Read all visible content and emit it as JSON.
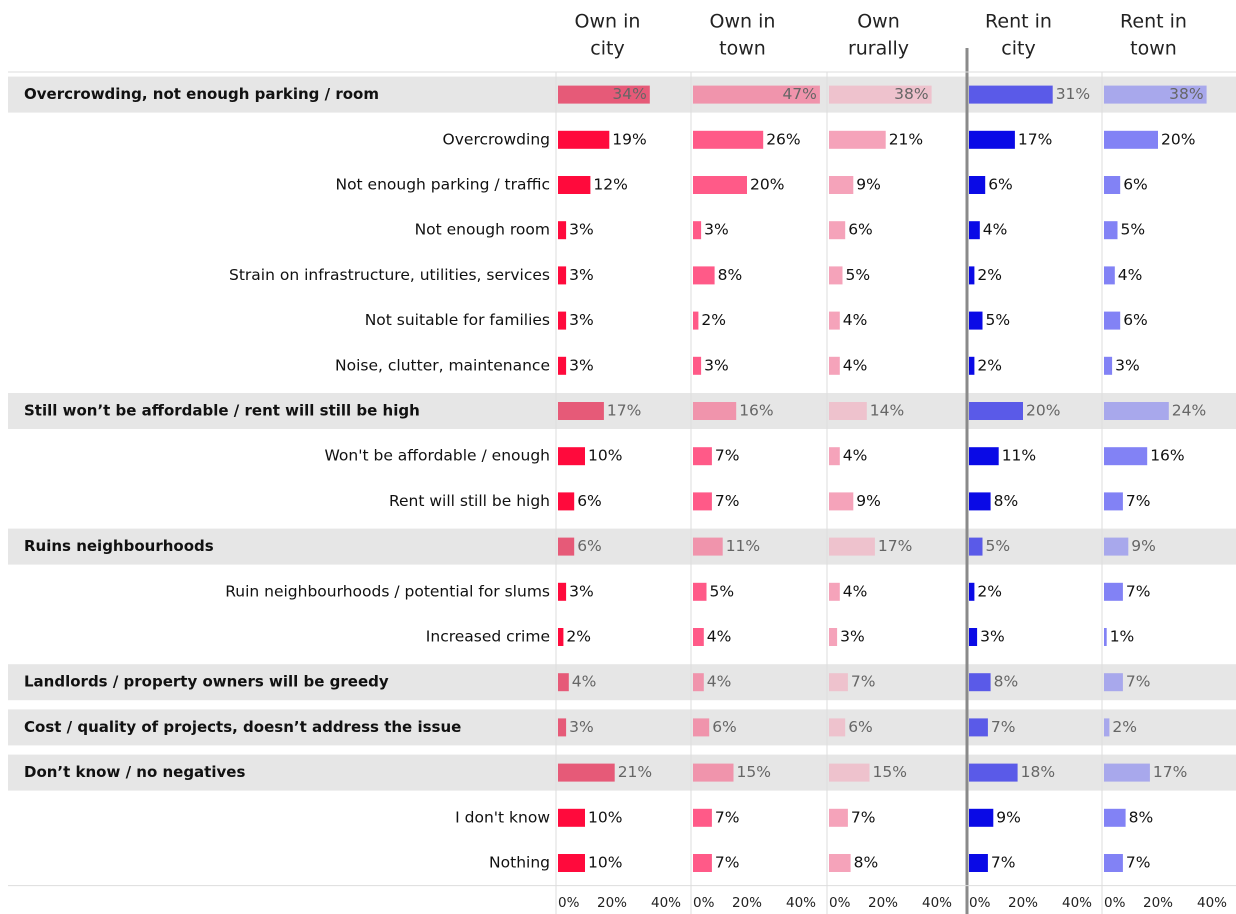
{
  "chart_data": {
    "type": "bar",
    "categories": [
      "Overcrowding, not enough parking / room",
      "Overcrowding",
      "Not enough parking / traffic",
      "Not enough room",
      "Strain on infrastructure, utilities, services",
      "Not suitable for families",
      "Noise, clutter, maintenance",
      "Still won’t be affordable / rent will still be high",
      "Won't be affordable / enough",
      "Rent will still be high",
      "Ruins neighbourhoods",
      "Ruin neighbourhoods / potential for slums",
      "Increased crime",
      "Landlords / property owners will be greedy",
      "Cost / quality of projects, doesn’t address the issue",
      "Don’t know / no negatives",
      "I don't know",
      "Nothing"
    ],
    "header_rows": [
      0,
      7,
      10,
      13,
      14,
      15
    ],
    "series": [
      {
        "name": [
          "Own in",
          "city"
        ],
        "color": "#ff0a3c",
        "header_color": "#e65a78",
        "values": [
          34,
          19,
          12,
          3,
          3,
          3,
          3,
          17,
          10,
          6,
          6,
          3,
          2,
          4,
          3,
          21,
          10,
          10
        ],
        "value_labels": [
          "34%",
          "19%",
          "12%",
          "3%",
          "3%",
          "3%",
          "3%",
          "17%",
          "10%",
          "6%",
          "6%",
          "3%",
          "2%",
          "4%",
          "3%",
          "21%",
          "10%",
          "10%"
        ]
      },
      {
        "name": [
          "Own in",
          "town"
        ],
        "color": "#ff5a88",
        "header_color": "#f094ac",
        "values": [
          47,
          26,
          20,
          3,
          8,
          2,
          3,
          16,
          7,
          7,
          11,
          5,
          4,
          4,
          6,
          15,
          7,
          7
        ],
        "value_labels": [
          "47%",
          "26%",
          "20%",
          "3%",
          "8%",
          "2%",
          "3%",
          "16%",
          "7%",
          "7%",
          "11%",
          "5%",
          "4%",
          "4%",
          "6%",
          "15%",
          "7%",
          "7%"
        ]
      },
      {
        "name": [
          "Own",
          "rurally"
        ],
        "color": "#f5a3ba",
        "header_color": "#eec2cd",
        "values": [
          38,
          21,
          9,
          6,
          5,
          4,
          4,
          14,
          4,
          9,
          17,
          4,
          3,
          7,
          6,
          15,
          7,
          8
        ],
        "value_labels": [
          "38%",
          "21%",
          "9%",
          "6%",
          "5%",
          "4%",
          "4%",
          "14%",
          "4%",
          "9%",
          "17%",
          "4%",
          "3%",
          "7%",
          "6%",
          "15%",
          "7%",
          "8%"
        ]
      },
      {
        "name": [
          "Rent in",
          "city"
        ],
        "color": "#0a0ae6",
        "header_color": "#5a5ae8",
        "values": [
          31,
          17,
          6,
          4,
          2,
          5,
          2,
          20,
          11,
          8,
          5,
          2,
          3,
          8,
          7,
          18,
          9,
          7
        ],
        "value_labels": [
          "31%",
          "17%",
          "6%",
          "4%",
          "2%",
          "5%",
          "2%",
          "20%",
          "11%",
          "8%",
          "5%",
          "2%",
          "3%",
          "8%",
          "7%",
          "18%",
          "9%",
          "7%"
        ]
      },
      {
        "name": [
          "Rent in",
          "town"
        ],
        "color": "#8282f5",
        "header_color": "#a8a8ec",
        "values": [
          38,
          20,
          6,
          5,
          4,
          6,
          3,
          24,
          16,
          7,
          9,
          7,
          1,
          7,
          2,
          17,
          8,
          7
        ],
        "value_labels": [
          "38%",
          "20%",
          "6%",
          "5%",
          "4%",
          "6%",
          "3%",
          "24%",
          "16%",
          "7%",
          "9%",
          "7%",
          "1%",
          "7%",
          "2%",
          "17%",
          "8%",
          "7%"
        ]
      }
    ],
    "xlim": [
      0,
      50
    ],
    "xticks": [
      {
        "value": 0,
        "label": "0%"
      },
      {
        "value": 20,
        "label": "20%"
      },
      {
        "value": 40,
        "label": "40%"
      }
    ]
  }
}
